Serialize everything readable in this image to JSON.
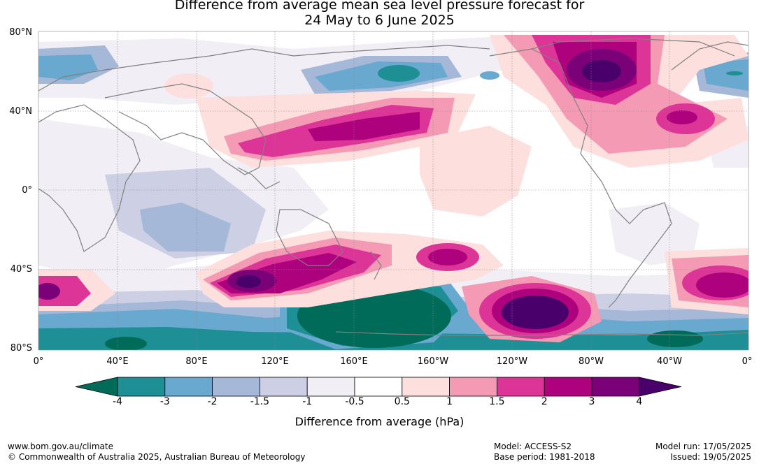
{
  "title": {
    "line1": "Difference from average mean sea level pressure forecast for",
    "line2": "24 May to 6 June 2025"
  },
  "map": {
    "lat_labels": [
      "80°N",
      "40°N",
      "0°",
      "40°S",
      "80°S"
    ],
    "lon_labels": [
      "0°",
      "40°E",
      "80°E",
      "120°E",
      "160°E",
      "160°W",
      "120°W",
      "80°W",
      "40°W",
      "0°"
    ]
  },
  "colorbar": {
    "title": "Difference from average (hPa)",
    "ticks": [
      "-4",
      "-3",
      "-2",
      "-1.5",
      "-1",
      "-0.5",
      "0.5",
      "1",
      "1.5",
      "2",
      "3",
      "4"
    ],
    "colors": {
      "below_min": "#006b58",
      "bins": [
        "#1f8f96",
        "#69a8cf",
        "#a6b8d8",
        "#cdd0e4",
        "#f1eef6",
        "#ffffff",
        "#fde0dd",
        "#f59ab5",
        "#dd3497",
        "#ae017e",
        "#7a0177"
      ],
      "above_max": "#49006a"
    }
  },
  "footer": {
    "website": "www.bom.gov.au/climate",
    "copyright": "© Commonwealth of Australia 2025, Australian Bureau of Meteorology",
    "model": "Model: ACCESS-S2",
    "base_period": "Base period: 1981-2018",
    "model_run": "Model run: 17/05/2025",
    "issued": "Issued: 19/05/2025"
  }
}
